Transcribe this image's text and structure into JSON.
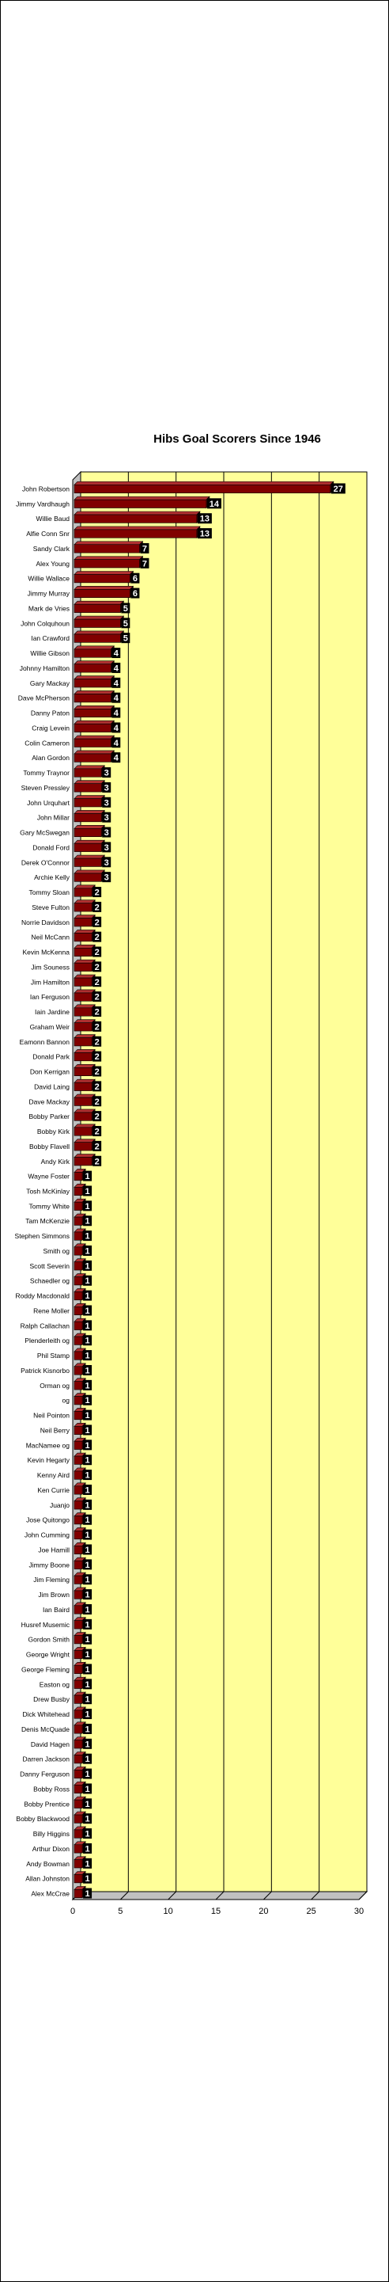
{
  "chart_data": {
    "type": "bar",
    "orientation": "horizontal",
    "title": "Hibs Goal Scorers Since 1946",
    "xlabel": "",
    "ylabel": "",
    "xlim": [
      0,
      30
    ],
    "xticks": [
      0,
      5,
      10,
      15,
      20,
      25,
      30
    ],
    "grid": true,
    "legend": "none",
    "colors": {
      "bar_front": "#800000",
      "bar_top": "#b03030",
      "bar_side": "#4d0000",
      "plot_background": "#ffff99",
      "gridline": "#000000",
      "value_label_background": "#000000"
    },
    "categories": [
      "John Robertson",
      "Jimmy Vardhaugh",
      "Willie Baud",
      "Alfie Conn Snr",
      "Sandy Clark",
      "Alex Young",
      "Willie Wallace",
      "Jimmy Murray",
      "Mark de Vries",
      "John Colquhoun",
      "Ian Crawford",
      "Willie Gibson",
      "Johnny Hamilton",
      "Gary Mackay",
      "Dave McPherson",
      "Danny Paton",
      "Craig Levein",
      "Colin Cameron",
      "Alan Gordon",
      "Tommy Traynor",
      "Steven Pressley",
      "John Urquhart",
      "John Millar",
      "Gary McSwegan",
      "Donald Ford",
      "Derek O'Connor",
      "Archie Kelly",
      "Tommy Sloan",
      "Steve Fulton",
      "Norrie Davidson",
      "Neil McCann",
      "Kevin McKenna",
      "Jim Souness",
      "Jim Hamilton",
      "Ian Ferguson",
      "Iain Jardine",
      "Graham Weir",
      "Eamonn Bannon",
      "Donald Park",
      "Don Kerrigan",
      "David Laing",
      "Dave Mackay",
      "Bobby Parker",
      "Bobby Kirk",
      "Bobby Flavell",
      "Andy Kirk",
      "Wayne Foster",
      "Tosh McKinlay",
      "Tommy White",
      "Tam McKenzie",
      "Stephen Simmons",
      "Smith og",
      "Scott Severin",
      "Schaedler og",
      "Roddy Macdonald",
      "Rene Moller",
      "Ralph Callachan",
      "Plenderleith og",
      "Phil Stamp",
      "Patrick Kisnorbo",
      "Orman og",
      "og",
      "Neil Pointon",
      "Neil Berry",
      "MacNamee og",
      "Kevin Hegarty",
      "Kenny Aird",
      "Ken Currie",
      "Juanjo",
      "Jose Quitongo",
      "John Cumming",
      "Joe Hamill",
      "Jimmy Boone",
      "Jim Fleming",
      "Jim Brown",
      "Ian Baird",
      "Husref Musemic",
      "Gordon Smith",
      "George Wright",
      "George Fleming",
      "Easton og",
      "Drew Busby",
      "Dick Whitehead",
      "Denis McQuade",
      "David Hagen",
      "Darren Jackson",
      "Danny Ferguson",
      "Bobby Ross",
      "Bobby Prentice",
      "Bobby Blackwood",
      "Billy Higgins",
      "Arthur Dixon",
      "Andy Bowman",
      "Allan Johnston",
      "Alex McCrae"
    ],
    "values": [
      27,
      14,
      13,
      13,
      7,
      7,
      6,
      6,
      5,
      5,
      5,
      4,
      4,
      4,
      4,
      4,
      4,
      4,
      4,
      3,
      3,
      3,
      3,
      3,
      3,
      3,
      3,
      2,
      2,
      2,
      2,
      2,
      2,
      2,
      2,
      2,
      2,
      2,
      2,
      2,
      2,
      2,
      2,
      2,
      2,
      2,
      1,
      1,
      1,
      1,
      1,
      1,
      1,
      1,
      1,
      1,
      1,
      1,
      1,
      1,
      1,
      1,
      1,
      1,
      1,
      1,
      1,
      1,
      1,
      1,
      1,
      1,
      1,
      1,
      1,
      1,
      1,
      1,
      1,
      1,
      1,
      1,
      1,
      1,
      1,
      1,
      1,
      1,
      1,
      1,
      1,
      1,
      1,
      1,
      1
    ]
  }
}
